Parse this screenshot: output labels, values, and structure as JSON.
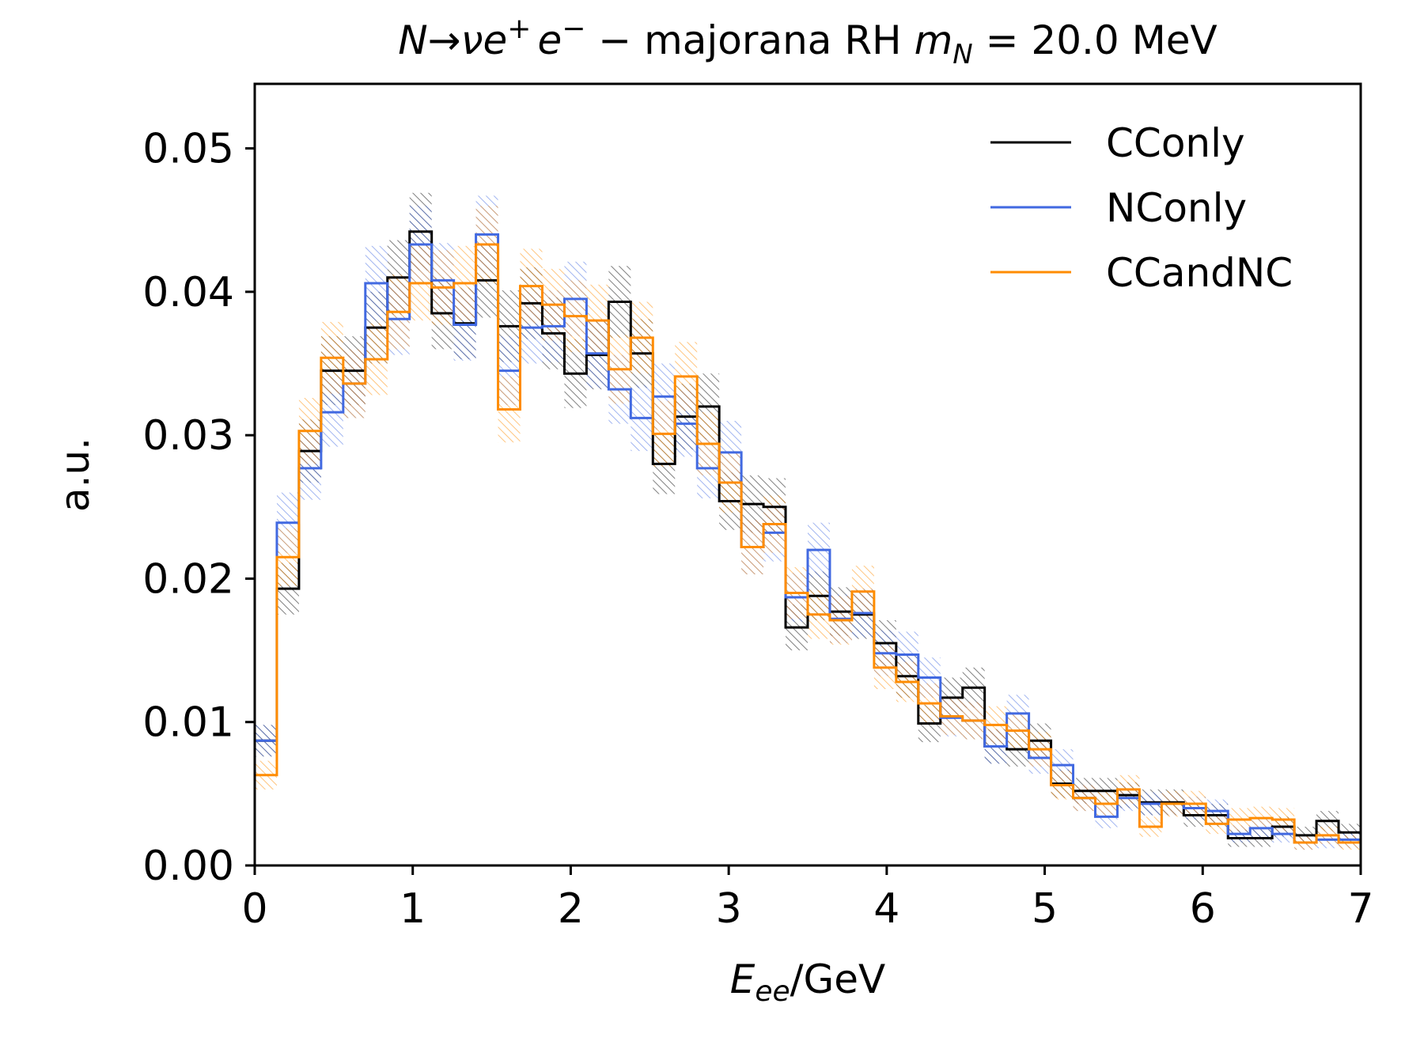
{
  "chart_data": {
    "type": "line",
    "title_parts": [
      "N",
      "→",
      "ν",
      "e",
      "+",
      "e",
      "−",
      " − majorana RH ",
      "m",
      "N",
      " = 20.0 MeV"
    ],
    "xlabel_parts": [
      "E",
      "ee",
      "/GeV"
    ],
    "ylabel": "a.u.",
    "xlim": [
      0,
      7
    ],
    "ylim": [
      0,
      0.0545
    ],
    "xticks": [
      0,
      1,
      2,
      3,
      4,
      5,
      6,
      7
    ],
    "xtick_labels": [
      "0",
      "1",
      "2",
      "3",
      "4",
      "5",
      "6",
      "7"
    ],
    "yticks": [
      0,
      0.01,
      0.02,
      0.03,
      0.04,
      0.05
    ],
    "ytick_labels": [
      "0.00",
      "0.01",
      "0.02",
      "0.03",
      "0.04",
      "0.05"
    ],
    "grid": false,
    "legend_position": "top-right",
    "bin_edges": [
      0.0,
      0.14,
      0.28,
      0.42,
      0.56,
      0.7,
      0.84,
      0.98,
      1.12,
      1.26,
      1.4,
      1.54,
      1.68,
      1.82,
      1.96,
      2.1,
      2.24,
      2.38,
      2.52,
      2.66,
      2.8,
      2.94,
      3.08,
      3.22,
      3.36,
      3.5,
      3.64,
      3.78,
      3.92,
      4.06,
      4.2,
      4.34,
      4.48,
      4.62,
      4.76,
      4.9,
      5.04,
      5.18,
      5.32,
      5.46,
      5.6,
      5.74,
      5.88,
      6.02,
      6.16,
      6.3,
      6.44,
      6.58,
      6.72,
      6.86,
      7.0
    ],
    "series": [
      {
        "name": "CConly",
        "color": "#000000",
        "values": [
          0.0087,
          0.0193,
          0.0289,
          0.0345,
          0.0345,
          0.0375,
          0.041,
          0.0442,
          0.0385,
          0.0378,
          0.0408,
          0.0376,
          0.0392,
          0.0371,
          0.0343,
          0.0356,
          0.0393,
          0.0357,
          0.028,
          0.0313,
          0.032,
          0.0254,
          0.0252,
          0.025,
          0.0166,
          0.0188,
          0.0177,
          0.0175,
          0.0155,
          0.0132,
          0.0099,
          0.0117,
          0.0124,
          0.0083,
          0.0081,
          0.0087,
          0.0057,
          0.0052,
          0.0052,
          0.0049,
          0.0044,
          0.0044,
          0.0035,
          0.0035,
          0.0019,
          0.0019,
          0.0027,
          0.0021,
          0.0031,
          0.0023
        ],
        "errors": [
          0.0011,
          0.0018,
          0.0022,
          0.0024,
          0.0024,
          0.0025,
          0.0026,
          0.0027,
          0.0025,
          0.0025,
          0.0026,
          0.0025,
          0.0025,
          0.0025,
          0.0024,
          0.0024,
          0.0025,
          0.0024,
          0.0021,
          0.0023,
          0.0023,
          0.002,
          0.002,
          0.002,
          0.0016,
          0.0017,
          0.0017,
          0.0017,
          0.0016,
          0.0015,
          0.0013,
          0.0014,
          0.0014,
          0.0012,
          0.0012,
          0.0012,
          0.001,
          0.0009,
          0.0009,
          0.0009,
          0.0009,
          0.0009,
          0.0008,
          0.0008,
          0.0006,
          0.0006,
          0.0007,
          0.0006,
          0.0007,
          0.0006
        ]
      },
      {
        "name": "NConly",
        "color": "#4169e1",
        "values": [
          0.0087,
          0.0239,
          0.0277,
          0.0316,
          0.0336,
          0.0406,
          0.0381,
          0.0433,
          0.0408,
          0.0377,
          0.044,
          0.0345,
          0.0375,
          0.0376,
          0.0395,
          0.0357,
          0.0332,
          0.0312,
          0.0327,
          0.0308,
          0.0277,
          0.0288,
          0.0222,
          0.0232,
          0.0187,
          0.022,
          0.0172,
          0.0176,
          0.0148,
          0.0147,
          0.0131,
          0.0103,
          0.0101,
          0.0083,
          0.0106,
          0.0075,
          0.007,
          0.0047,
          0.0034,
          0.0047,
          0.0043,
          0.0043,
          0.004,
          0.0038,
          0.0022,
          0.0026,
          0.0022,
          0.0016,
          0.0018,
          0.0018
        ],
        "errors": [
          0.0011,
          0.0021,
          0.0022,
          0.0024,
          0.0024,
          0.0026,
          0.0025,
          0.0027,
          0.0026,
          0.0025,
          0.0027,
          0.0024,
          0.0025,
          0.0025,
          0.0026,
          0.0024,
          0.0024,
          0.0023,
          0.0023,
          0.0023,
          0.0021,
          0.0022,
          0.0019,
          0.002,
          0.0017,
          0.0019,
          0.0017,
          0.0017,
          0.0016,
          0.0016,
          0.0014,
          0.0013,
          0.0013,
          0.0012,
          0.0013,
          0.0011,
          0.0011,
          0.0009,
          0.0008,
          0.0009,
          0.0008,
          0.0008,
          0.0008,
          0.0008,
          0.0006,
          0.0007,
          0.0006,
          0.0005,
          0.0006,
          0.0006
        ]
      },
      {
        "name": "CCandNC",
        "color": "#ff8c00",
        "values": [
          0.0063,
          0.0215,
          0.0303,
          0.0354,
          0.0336,
          0.0353,
          0.0386,
          0.0406,
          0.0403,
          0.0406,
          0.0433,
          0.0318,
          0.0404,
          0.0391,
          0.0383,
          0.038,
          0.0346,
          0.0368,
          0.0301,
          0.0341,
          0.0294,
          0.0267,
          0.0222,
          0.0238,
          0.019,
          0.0175,
          0.0171,
          0.0191,
          0.0138,
          0.0128,
          0.0113,
          0.0104,
          0.0101,
          0.0098,
          0.0094,
          0.0081,
          0.0056,
          0.0047,
          0.0043,
          0.0053,
          0.0027,
          0.0043,
          0.0043,
          0.0029,
          0.0032,
          0.0033,
          0.0032,
          0.0016,
          0.0021,
          0.0016
        ],
        "errors": [
          0.001,
          0.002,
          0.0023,
          0.0025,
          0.0024,
          0.0025,
          0.0026,
          0.0026,
          0.0026,
          0.0026,
          0.0027,
          0.0023,
          0.0026,
          0.0025,
          0.0025,
          0.0025,
          0.0024,
          0.0025,
          0.0023,
          0.0024,
          0.0022,
          0.0021,
          0.0019,
          0.002,
          0.0018,
          0.0017,
          0.0017,
          0.0018,
          0.0015,
          0.0014,
          0.0014,
          0.0013,
          0.0013,
          0.0013,
          0.0013,
          0.0012,
          0.001,
          0.0009,
          0.0009,
          0.001,
          0.0007,
          0.0009,
          0.0009,
          0.0007,
          0.0008,
          0.0008,
          0.0008,
          0.0005,
          0.0006,
          0.0005
        ]
      }
    ]
  }
}
